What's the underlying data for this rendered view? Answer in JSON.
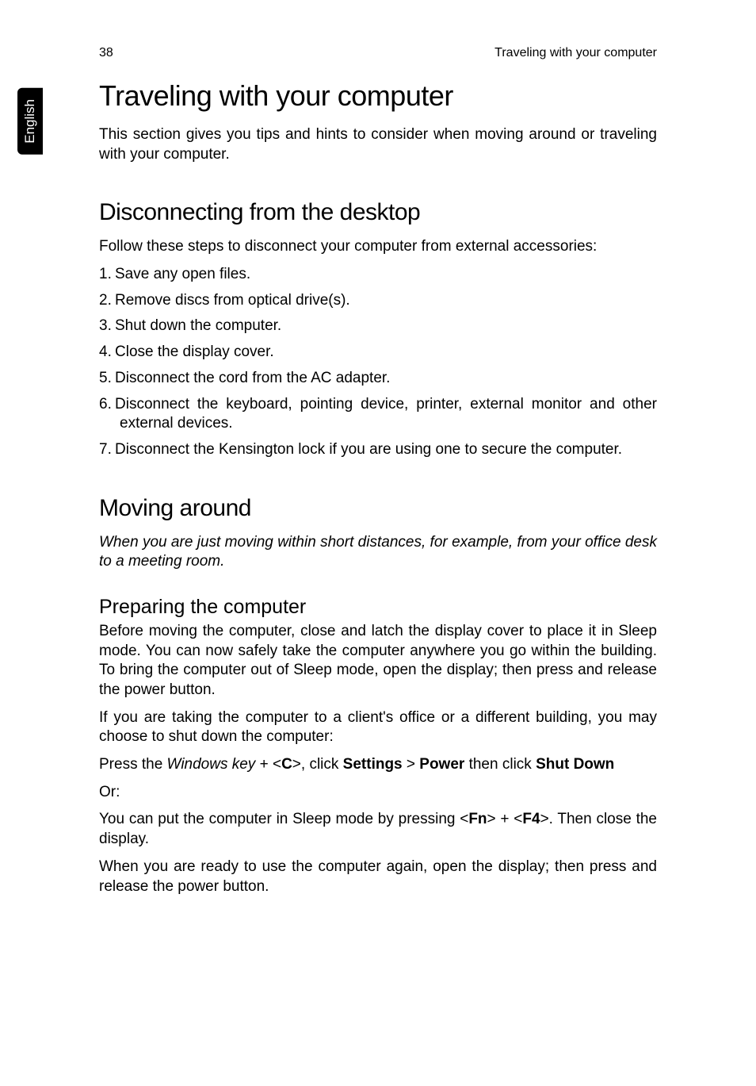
{
  "header": {
    "page_number": "38",
    "running_title": "Traveling with your computer"
  },
  "side_tab": "English",
  "title": "Traveling with your computer",
  "intro": "This section gives you tips and hints to consider when moving around or traveling with your computer.",
  "section1": {
    "heading": "Disconnecting from the desktop",
    "intro": "Follow these steps to disconnect your computer from external accessories:",
    "steps": [
      "Save any open files.",
      "Remove discs from optical drive(s).",
      "Shut down the computer.",
      "Close the display cover.",
      "Disconnect the cord from the AC adapter.",
      "Disconnect the keyboard, pointing device, printer, external monitor and other external devices.",
      "Disconnect the Kensington lock if you are using one to secure the computer."
    ]
  },
  "section2": {
    "heading": "Moving around",
    "intro_italic": "When you are just moving within short distances, for example, from your office desk to a meeting room.",
    "sub": {
      "heading": "Preparing the computer",
      "p1": "Before moving the computer, close and latch the display cover to place it in Sleep mode. You can now safely take the computer anywhere you go within the building. To bring the computer out of Sleep mode, open the display; then press and release the power button.",
      "p2": "If you are taking the computer to a client's office or a different building, you may choose to shut down the computer:",
      "p3_pre": "Press the ",
      "p3_winkey": "Windows key",
      "p3_mid1": " + <",
      "p3_c": "C",
      "p3_mid2": ">, click ",
      "p3_settings": "Settings",
      "p3_gt": " > ",
      "p3_power": "Power",
      "p3_then": " then click ",
      "p3_shutdown": "Shut Down",
      "p4": "Or:",
      "p5_pre": "You can put the computer in Sleep mode by pressing <",
      "p5_fn": "Fn",
      "p5_mid": "> + <",
      "p5_f4": "F4",
      "p5_post": ">. Then close the display.",
      "p6": "When you are ready to use the computer again, open the display; then press and release the power button."
    }
  }
}
